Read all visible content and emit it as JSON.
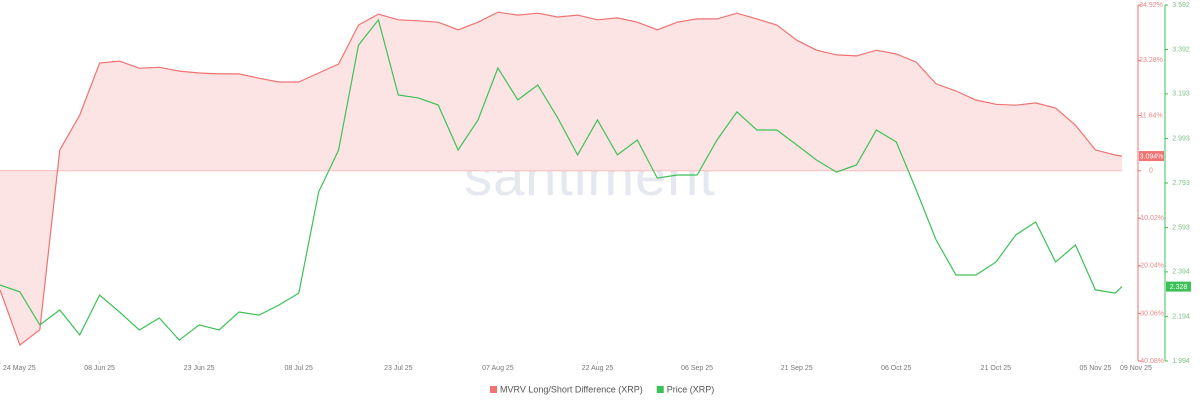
{
  "chart_data": {
    "type": "line",
    "watermark": "santiment",
    "x": [
      "2025-05-24",
      "2025-05-27",
      "2025-05-30",
      "2025-06-02",
      "2025-06-05",
      "2025-06-08",
      "2025-06-11",
      "2025-06-14",
      "2025-06-17",
      "2025-06-20",
      "2025-06-23",
      "2025-06-26",
      "2025-06-29",
      "2025-07-02",
      "2025-07-05",
      "2025-07-08",
      "2025-07-11",
      "2025-07-14",
      "2025-07-17",
      "2025-07-20",
      "2025-07-23",
      "2025-07-26",
      "2025-07-29",
      "2025-08-01",
      "2025-08-04",
      "2025-08-07",
      "2025-08-10",
      "2025-08-13",
      "2025-08-16",
      "2025-08-19",
      "2025-08-22",
      "2025-08-25",
      "2025-08-28",
      "2025-08-31",
      "2025-09-03",
      "2025-09-06",
      "2025-09-09",
      "2025-09-12",
      "2025-09-15",
      "2025-09-18",
      "2025-09-21",
      "2025-09-24",
      "2025-09-27",
      "2025-09-30",
      "2025-10-03",
      "2025-10-06",
      "2025-10-09",
      "2025-10-12",
      "2025-10-15",
      "2025-10-18",
      "2025-10-21",
      "2025-10-24",
      "2025-10-27",
      "2025-10-30",
      "2025-11-02",
      "2025-11-05",
      "2025-11-08",
      "2025-11-09"
    ],
    "xlim": [
      "2025-05-24",
      "2025-11-09"
    ],
    "xticks": [
      {
        "value": "2025-05-24",
        "label": "24 May 25"
      },
      {
        "value": "2025-06-08",
        "label": "08 Jun 25"
      },
      {
        "value": "2025-06-23",
        "label": "23 Jun 25"
      },
      {
        "value": "2025-07-08",
        "label": "08 Jul 25"
      },
      {
        "value": "2025-07-23",
        "label": "23 Jul 25"
      },
      {
        "value": "2025-08-07",
        "label": "07 Aug 25"
      },
      {
        "value": "2025-08-22",
        "label": "22 Aug 25"
      },
      {
        "value": "2025-09-06",
        "label": "06 Sep 25"
      },
      {
        "value": "2025-09-21",
        "label": "21 Sep 25"
      },
      {
        "value": "2025-10-06",
        "label": "06 Oct 25"
      },
      {
        "value": "2025-10-21",
        "label": "21 Oct 25"
      },
      {
        "value": "2025-11-05",
        "label": "05 Nov 25"
      },
      {
        "value": "2025-11-09",
        "label": "09 Nov 25"
      }
    ],
    "ylim": [
      -40.08,
      34.92
    ],
    "yticks": [
      {
        "value": 34.92,
        "label": "34.92%"
      },
      {
        "value": 23.28,
        "label": "23.28%"
      },
      {
        "value": 11.64,
        "label": "11.64%"
      },
      0,
      {
        "value": -10.02,
        "label": "-10.02%"
      },
      {
        "value": -20.04,
        "label": "-20.04%"
      },
      {
        "value": -30.06,
        "label": "-30.06%"
      },
      {
        "value": -40.08,
        "label": "-40.08%"
      }
    ],
    "y2lim": [
      1.994,
      3.592
    ],
    "y2ticks": [
      3.592,
      3.392,
      3.193,
      2.993,
      2.793,
      2.593,
      2.394,
      2.194,
      1.994
    ],
    "legend": "bottom",
    "series": [
      {
        "name": "MVRV Long/Short Difference (XRP)",
        "color": "#f07272",
        "area_fill": "#fde4e4",
        "last_label": "3.094%",
        "values": [
          -25.1,
          -36.7,
          -33.5,
          4.4,
          11.7,
          22.7,
          23.1,
          21.6,
          21.8,
          21.0,
          20.6,
          20.4,
          20.4,
          19.5,
          18.7,
          18.7,
          20.6,
          22.5,
          30.7,
          33.0,
          31.8,
          31.6,
          31.3,
          29.7,
          31.3,
          33.4,
          32.8,
          33.2,
          32.4,
          32.8,
          31.8,
          32.2,
          31.3,
          29.7,
          31.3,
          32.0,
          32.0,
          33.2,
          32.0,
          30.7,
          27.5,
          25.4,
          24.4,
          24.2,
          25.4,
          24.6,
          22.9,
          18.3,
          16.8,
          14.9,
          14.0,
          13.8,
          14.3,
          13.2,
          9.6,
          4.4,
          3.3,
          3.094
        ]
      },
      {
        "name": "Price (XRP)",
        "color": "#3cc156",
        "axis": "y2",
        "last_label": "2.328",
        "values": [
          2.335,
          2.304,
          2.156,
          2.223,
          2.111,
          2.29,
          2.214,
          2.133,
          2.187,
          2.088,
          2.156,
          2.133,
          2.214,
          2.2,
          2.245,
          2.299,
          2.753,
          2.941,
          3.412,
          3.525,
          3.188,
          3.175,
          3.143,
          2.941,
          3.076,
          3.309,
          3.166,
          3.233,
          3.085,
          2.919,
          3.076,
          2.919,
          2.986,
          2.815,
          2.829,
          2.829,
          2.986,
          3.112,
          3.031,
          3.031,
          2.964,
          2.896,
          2.842,
          2.874,
          3.031,
          2.977,
          2.762,
          2.537,
          2.38,
          2.38,
          2.438,
          2.56,
          2.618,
          2.438,
          2.515,
          2.313,
          2.299,
          2.328
        ]
      }
    ]
  }
}
